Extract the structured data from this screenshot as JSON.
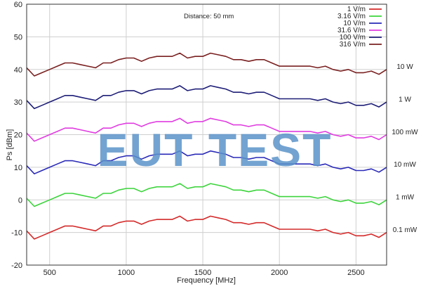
{
  "chart_data": {
    "type": "line",
    "xlabel": "Frequency [MHz]",
    "ylabel": "Ps [dBm]",
    "xlim": [
      350,
      2700
    ],
    "ylim": [
      -20,
      60
    ],
    "xticks": [
      500,
      1000,
      1500,
      2000,
      2500
    ],
    "yticks": [
      -20,
      -10,
      0,
      10,
      20,
      30,
      40,
      50,
      60
    ],
    "grid": true,
    "legend_position": "top-right",
    "annotation": "Distance: 50 mm",
    "watermark": "EUT TEST",
    "x": [
      350,
      400,
      450,
      500,
      550,
      600,
      650,
      700,
      750,
      800,
      850,
      900,
      950,
      1000,
      1050,
      1100,
      1150,
      1200,
      1250,
      1300,
      1350,
      1400,
      1450,
      1500,
      1550,
      1600,
      1650,
      1700,
      1750,
      1800,
      1850,
      1900,
      1950,
      2000,
      2050,
      2100,
      2150,
      2200,
      2250,
      2300,
      2350,
      2400,
      2450,
      2500,
      2550,
      2600,
      2650,
      2700
    ],
    "series": [
      {
        "name": "1 V/m",
        "color": "#d42a2a",
        "right_label": "0.1 mW",
        "values": [
          -9.5,
          -12,
          -11,
          -10,
          -9,
          -8,
          -8,
          -8.5,
          -9,
          -9.5,
          -8,
          -8,
          -7,
          -6.5,
          -6.5,
          -7.5,
          -6.5,
          -6,
          -6,
          -6,
          -5,
          -6.5,
          -6,
          -6,
          -5,
          -5.5,
          -6,
          -7,
          -7,
          -7.5,
          -7,
          -7,
          -8,
          -9,
          -9,
          -9,
          -9,
          -9,
          -9.5,
          -9,
          -10,
          -10.5,
          -10,
          -11,
          -11,
          -10.5,
          -11.5,
          -10
        ]
      },
      {
        "name": "3.16 V/m",
        "color": "#3cd43c",
        "right_label": "1 mW",
        "values": [
          0.5,
          -2,
          -1,
          0,
          1,
          2,
          2,
          1.5,
          1,
          0.5,
          2,
          2,
          3,
          3.5,
          3.5,
          2.5,
          3.5,
          4,
          4,
          4,
          5,
          3.5,
          4,
          4,
          5,
          4.5,
          4,
          3,
          3,
          2.5,
          3,
          3,
          2,
          1,
          1,
          1,
          1,
          1,
          0.5,
          1,
          0,
          -0.5,
          0,
          -1,
          -1,
          -0.5,
          -1.5,
          0
        ]
      },
      {
        "name": "10 V/m",
        "color": "#2a2ab8",
        "right_label": "10 mW",
        "values": [
          10.5,
          8,
          9,
          10,
          11,
          12,
          12,
          11.5,
          11,
          10.5,
          12,
          12,
          13,
          13.5,
          13.5,
          12.5,
          13.5,
          14,
          14,
          14,
          15,
          13.5,
          14,
          14,
          15,
          14.5,
          14,
          13,
          13,
          12.5,
          13,
          13,
          12,
          11,
          11,
          11,
          11,
          11,
          10.5,
          11,
          10,
          9.5,
          10,
          9,
          9,
          9.5,
          8.5,
          10
        ]
      },
      {
        "name": "31.6 V/m",
        "color": "#e03ce0",
        "right_label": "100 mW",
        "values": [
          20.5,
          18,
          19,
          20,
          21,
          22,
          22,
          21.5,
          21,
          20.5,
          22,
          22,
          23,
          23.5,
          23.5,
          22.5,
          23.5,
          24,
          24,
          24,
          25,
          23.5,
          24,
          24,
          25,
          24.5,
          24,
          23,
          23,
          22.5,
          23,
          23,
          22,
          21,
          21,
          21,
          21,
          21,
          20.5,
          21,
          20,
          19.5,
          20,
          19,
          19,
          19.5,
          18.5,
          20
        ]
      },
      {
        "name": "100 V/m",
        "color": "#1e1e78",
        "right_label": "1 W",
        "values": [
          30.5,
          28,
          29,
          30,
          31,
          32,
          32,
          31.5,
          31,
          30.5,
          32,
          32,
          33,
          33.5,
          33.5,
          32.5,
          33.5,
          34,
          34,
          34,
          35,
          33.5,
          34,
          34,
          35,
          34.5,
          34,
          33,
          33,
          32.5,
          33,
          33,
          32,
          31,
          31,
          31,
          31,
          31,
          30.5,
          31,
          30,
          29.5,
          30,
          29,
          29,
          29.5,
          28.5,
          30
        ]
      },
      {
        "name": "316 V/m",
        "color": "#7a2020",
        "right_label": "10 W",
        "values": [
          40.5,
          38,
          39,
          40,
          41,
          42,
          42,
          41.5,
          41,
          40.5,
          42,
          42,
          43,
          43.5,
          43.5,
          42.5,
          43.5,
          44,
          44,
          44,
          45,
          43.5,
          44,
          44,
          45,
          44.5,
          44,
          43,
          43,
          42.5,
          43,
          43,
          42,
          41,
          41,
          41,
          41,
          41,
          40.5,
          41,
          40,
          39.5,
          40,
          39,
          39,
          39.5,
          38.5,
          40
        ]
      }
    ]
  }
}
